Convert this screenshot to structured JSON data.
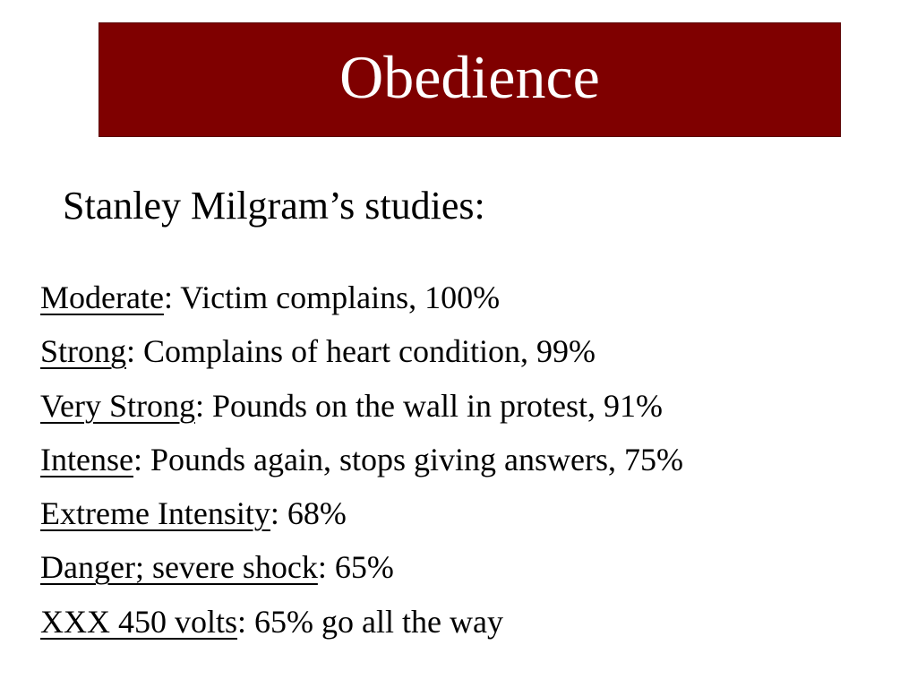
{
  "slide": {
    "title": "Obedience",
    "subtitle": "Stanley Milgram’s studies:",
    "accent_color": "#7f0000",
    "items": [
      {
        "level": "Moderate",
        "description": ": Victim complains, 100%"
      },
      {
        "level": "Strong",
        "description": ": Complains of heart condition, 99%"
      },
      {
        "level": "Very Strong",
        "description": ": Pounds on the wall in protest, 91%"
      },
      {
        "level": "Intense",
        "description": ": Pounds again, stops giving answers, 75%"
      },
      {
        "level": "Extreme Intensity",
        "description": ": 68%"
      },
      {
        "level": "Danger; severe shock",
        "description": ": 65%"
      },
      {
        "level": "XXX 450 volts",
        "description": ": 65% go all the way"
      }
    ]
  }
}
